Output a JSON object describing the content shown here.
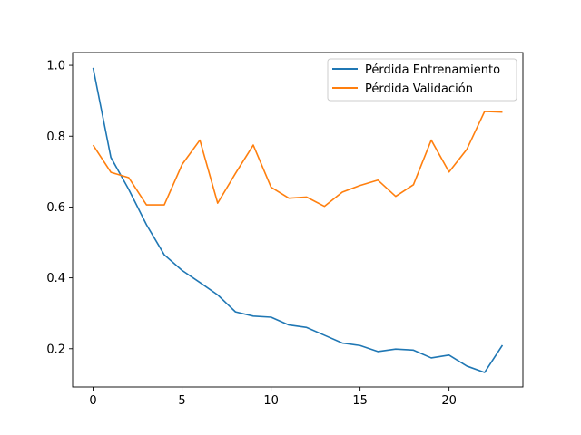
{
  "chart_data": {
    "type": "line",
    "title": "",
    "xlabel": "",
    "ylabel": "",
    "xlim": [
      -1.15,
      24.15
    ],
    "ylim": [
      0.092,
      1.036
    ],
    "xticks": [
      0,
      5,
      10,
      15,
      20
    ],
    "yticks": [
      0.2,
      0.4,
      0.6,
      0.8,
      1.0
    ],
    "xtick_labels": [
      "0",
      "5",
      "10",
      "15",
      "20"
    ],
    "ytick_labels": [
      "0.2",
      "0.4",
      "0.6",
      "0.8",
      "1.0"
    ],
    "grid": false,
    "legend_position": "top-right",
    "x": [
      0,
      1,
      2,
      3,
      4,
      5,
      6,
      7,
      8,
      9,
      10,
      11,
      12,
      13,
      14,
      15,
      16,
      17,
      18,
      19,
      20,
      21,
      22,
      23
    ],
    "series": [
      {
        "name": "Pérdida Entrenamiento",
        "color": "#1f77b4",
        "values": [
          0.993,
          0.74,
          0.65,
          0.55,
          0.465,
          0.421,
          0.387,
          0.352,
          0.304,
          0.292,
          0.289,
          0.267,
          0.26,
          0.238,
          0.216,
          0.209,
          0.192,
          0.199,
          0.196,
          0.174,
          0.182,
          0.151,
          0.133,
          0.21
        ]
      },
      {
        "name": "Pérdida Validación",
        "color": "#ff7f0e",
        "values": [
          0.775,
          0.698,
          0.683,
          0.606,
          0.606,
          0.72,
          0.789,
          0.611,
          0.695,
          0.775,
          0.656,
          0.625,
          0.628,
          0.602,
          0.642,
          0.661,
          0.676,
          0.63,
          0.663,
          0.789,
          0.699,
          0.763,
          0.87,
          0.868
        ]
      }
    ]
  }
}
